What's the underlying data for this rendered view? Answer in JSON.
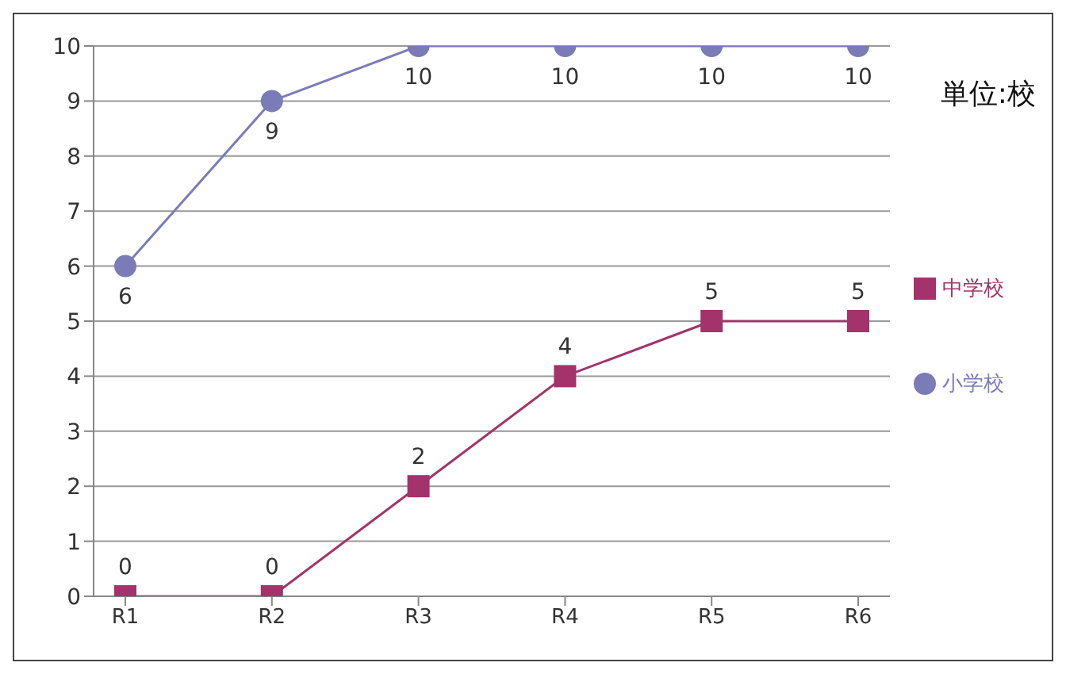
{
  "chart_data": {
    "type": "line",
    "categories": [
      "R1",
      "R2",
      "R3",
      "R4",
      "R5",
      "R6"
    ],
    "series": [
      {
        "name": "小学校",
        "color": "#7b7bb8",
        "marker": "circle",
        "values": [
          6,
          9,
          10,
          10,
          10,
          10
        ]
      },
      {
        "name": "中学校",
        "color": "#a3336a",
        "marker": "square",
        "values": [
          0,
          0,
          2,
          4,
          5,
          5
        ]
      }
    ],
    "ylim": [
      0,
      10
    ],
    "yticks": [
      0,
      1,
      2,
      3,
      4,
      5,
      6,
      7,
      8,
      9,
      10
    ],
    "grid": "y",
    "legend": "right",
    "data_labels": true,
    "annotations": [
      "単位:校"
    ]
  }
}
